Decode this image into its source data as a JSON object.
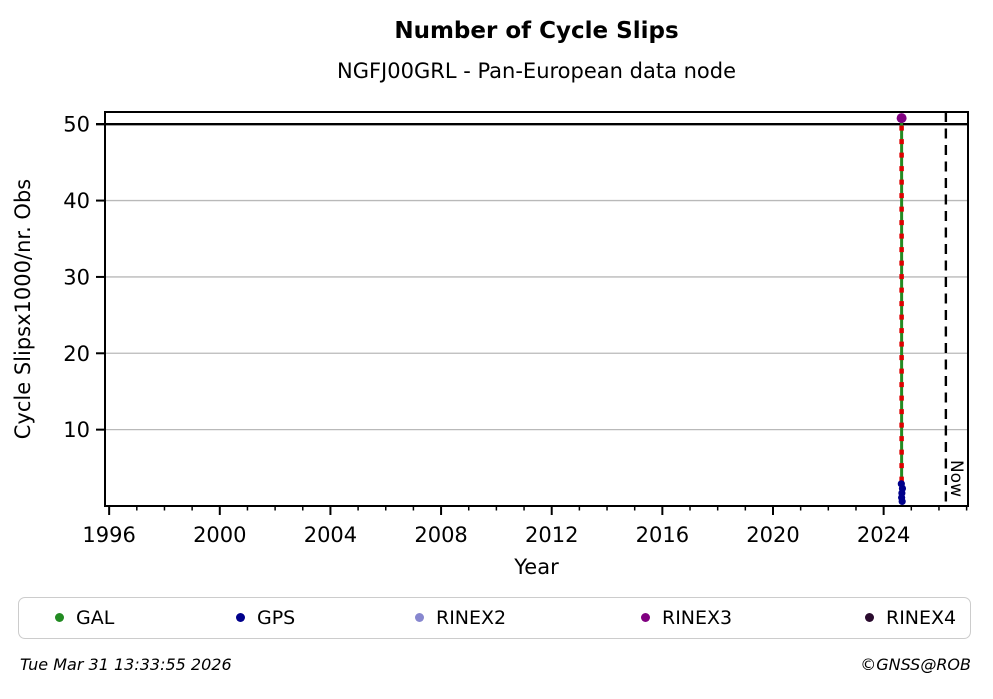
{
  "title": "Number of Cycle Slips",
  "subtitle": "NGFJ00GRL - Pan-European data node",
  "footer": {
    "timestamp": "Tue Mar 31 13:33:55 2026",
    "credit": "©GNSS@ROB"
  },
  "legend": [
    {
      "label": "GAL",
      "color": "#228b22"
    },
    {
      "label": "GPS",
      "color": "#00008b"
    },
    {
      "label": "RINEX2",
      "color": "#8787cf"
    },
    {
      "label": "RINEX3",
      "color": "#800080"
    },
    {
      "label": "RINEX4",
      "color": "#2a0b2e"
    }
  ],
  "chart_data": {
    "type": "scatter",
    "title": "Number of Cycle Slips",
    "subtitle": "NGFJ00GRL - Pan-European data node",
    "xlabel": "Year",
    "ylabel": "Cycle Slipsx1000/nr. Obs",
    "xlim": [
      1995.85,
      2027.05
    ],
    "ylim": [
      0,
      51.6
    ],
    "xticks": [
      1996,
      2000,
      2004,
      2008,
      2012,
      2016,
      2020,
      2024
    ],
    "minor_xtick_step": 1,
    "yticks": [
      10,
      20,
      30,
      40,
      50
    ],
    "grid": {
      "horizontal": true,
      "vertical": false,
      "color": "#b9b9b9",
      "grid_y_values": [
        10,
        20,
        30,
        40
      ]
    },
    "threshold_line": {
      "y": 50,
      "color": "#000000",
      "style": "solid"
    },
    "now_line": {
      "x": 2026.25,
      "label": "Now",
      "style": "dashed",
      "color": "#000000"
    },
    "series": [
      {
        "name": "GAL",
        "color": "#228b22",
        "type": "vline",
        "style": "solid",
        "x": 2024.65,
        "y_from": 3.2,
        "y_to": 50.8,
        "width": 3
      },
      {
        "name": "GAL-red-dash-overlay",
        "color": "#dd0000",
        "type": "vline",
        "style": "dashed",
        "x": 2024.65,
        "y_from": 3.2,
        "y_to": 50.6,
        "width": 4.5
      },
      {
        "name": "GPS",
        "color": "#00008b",
        "type": "points",
        "marker_size": 3.6,
        "points": [
          [
            2024.64,
            2.9
          ],
          [
            2024.68,
            2.3
          ],
          [
            2024.66,
            1.7
          ],
          [
            2024.65,
            1.1
          ],
          [
            2024.67,
            0.6
          ]
        ]
      },
      {
        "name": "RINEX3",
        "color": "#800080",
        "type": "points",
        "marker_size": 5,
        "points": [
          [
            2024.65,
            50.8
          ]
        ]
      }
    ],
    "legend_entries": [
      "GAL",
      "GPS",
      "RINEX2",
      "RINEX3",
      "RINEX4"
    ],
    "legend_position": "bottom"
  }
}
